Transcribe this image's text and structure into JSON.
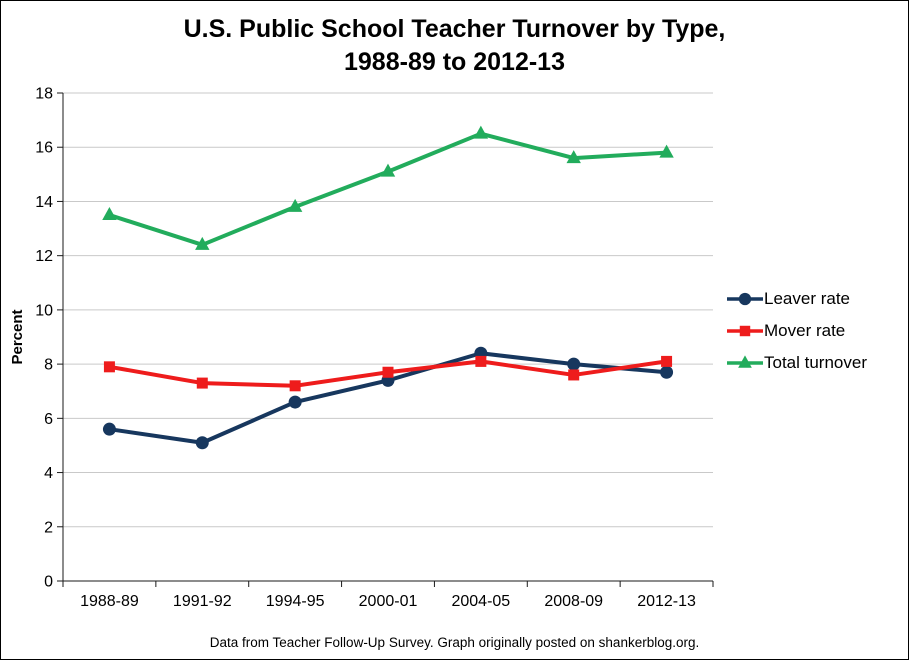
{
  "chart_data": {
    "type": "line",
    "title": "U.S. Public School Teacher Turnover by Type, 1988-89 to 2012-13",
    "title_lines": [
      "U.S. Public School Teacher Turnover by Type,",
      "1988-89 to 2012-13"
    ],
    "xlabel": "",
    "ylabel": "Percent",
    "ylim": [
      0,
      18
    ],
    "ytick_step": 2,
    "grid": true,
    "legend_position": "right",
    "axis_color": "#1a1a1a",
    "grid_color": "#c9c9c9",
    "categories": [
      "1988-89",
      "1991-92",
      "1994-95",
      "2000-01",
      "2004-05",
      "2008-09",
      "2012-13"
    ],
    "series": [
      {
        "name": "Leaver rate",
        "color": "#17375E",
        "marker": "circle",
        "values": [
          5.6,
          5.1,
          6.6,
          7.4,
          8.4,
          8.0,
          7.7
        ]
      },
      {
        "name": "Mover rate",
        "color": "#EE1C1C",
        "marker": "square",
        "values": [
          7.9,
          7.3,
          7.2,
          7.7,
          8.1,
          7.6,
          8.1
        ]
      },
      {
        "name": "Total turnover",
        "color": "#22AC5C",
        "marker": "triangle",
        "values": [
          13.5,
          12.4,
          13.8,
          15.1,
          16.5,
          15.6,
          15.8
        ]
      }
    ],
    "source_note": "Data from Teacher Follow-Up Survey.  Graph originally posted on shankerblog.org."
  }
}
